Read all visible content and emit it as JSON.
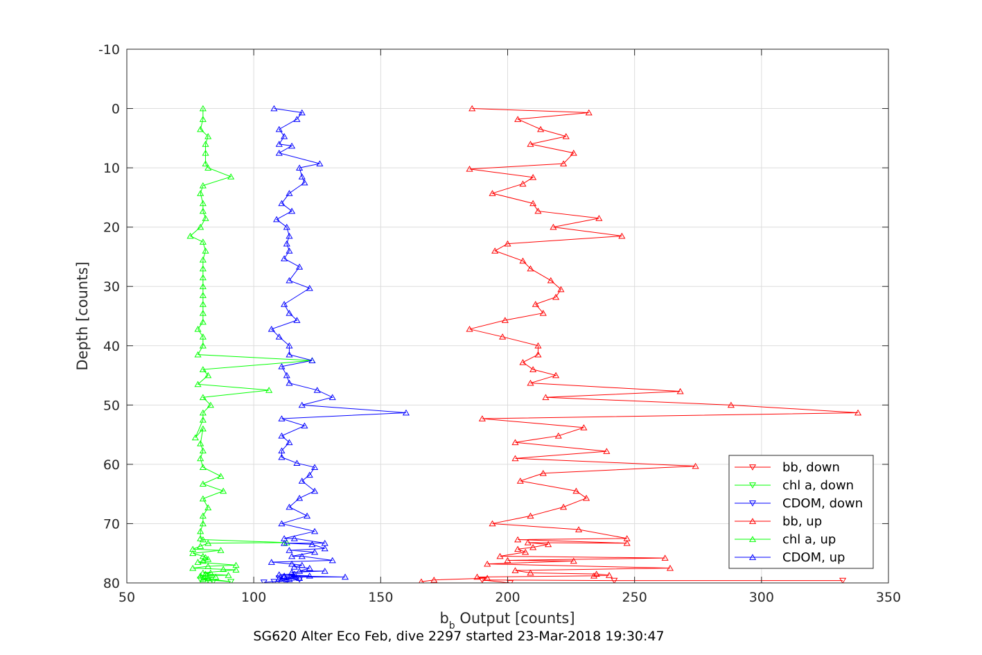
{
  "chart_data": {
    "type": "line",
    "xlabel": "b",
    "xlabel_sub": "b",
    "xlabel_rest": " Output [counts]",
    "ylabel": "Depth [counts]",
    "caption": "SG620 Alter Eco Feb, dive 2297 started 23-Mar-2018 19:30:47",
    "xlim": [
      50,
      350
    ],
    "ylim": [
      -10,
      80
    ],
    "y_reversed": true,
    "grid": true,
    "xticks": [
      "50",
      "100",
      "150",
      "200",
      "250",
      "300",
      "350"
    ],
    "yticks": [
      "-10",
      "0",
      "10",
      "20",
      "30",
      "40",
      "50",
      "60",
      "70",
      "80"
    ],
    "legend_position": "lower-right",
    "series": [
      {
        "name": "bb, down",
        "color": "#ff0000",
        "marker": "triangle-down",
        "points": [
          [
            201,
            80
          ],
          [
            190,
            79.5
          ],
          [
            242,
            79.6
          ],
          [
            332,
            79.6
          ]
        ]
      },
      {
        "name": "chl a, down",
        "color": "#00ff00",
        "marker": "triangle-down",
        "points": [
          [
            82,
            79.5
          ],
          [
            84,
            79.8
          ],
          [
            80,
            79.2
          ],
          [
            91,
            79.8
          ],
          [
            79,
            79.4
          ]
        ]
      },
      {
        "name": "CDOM, down",
        "color": "#0000ff",
        "marker": "triangle-down",
        "points": [
          [
            104,
            79.9
          ],
          [
            108,
            79.8
          ],
          [
            113,
            79.7
          ],
          [
            118,
            79.4
          ],
          [
            110,
            79.2
          ]
        ]
      },
      {
        "name": "bb, up",
        "color": "#ff0000",
        "marker": "triangle-up",
        "points": [
          [
            186,
            0
          ],
          [
            232,
            0.7
          ],
          [
            204,
            1.8
          ],
          [
            213,
            3.5
          ],
          [
            223,
            4.7
          ],
          [
            209,
            6
          ],
          [
            226,
            7.5
          ],
          [
            222,
            9.3
          ],
          [
            185,
            10.2
          ],
          [
            210,
            11.6
          ],
          [
            206,
            12.7
          ],
          [
            194,
            14.3
          ],
          [
            210,
            16
          ],
          [
            212,
            17.3
          ],
          [
            236,
            18.5
          ],
          [
            218,
            20
          ],
          [
            245,
            21.5
          ],
          [
            200,
            22.8
          ],
          [
            195,
            24
          ],
          [
            206,
            25.7
          ],
          [
            209,
            27
          ],
          [
            217,
            29
          ],
          [
            221,
            30.5
          ],
          [
            219,
            31.8
          ],
          [
            211,
            33
          ],
          [
            214,
            34.5
          ],
          [
            199,
            35.7
          ],
          [
            185,
            37.2
          ],
          [
            198,
            38.5
          ],
          [
            212,
            40
          ],
          [
            212,
            41.5
          ],
          [
            206,
            42.8
          ],
          [
            210,
            44
          ],
          [
            219,
            45
          ],
          [
            209,
            46.3
          ],
          [
            268,
            47.7
          ],
          [
            215,
            48.7
          ],
          [
            288,
            50
          ],
          [
            338,
            51.3
          ],
          [
            190,
            52.3
          ],
          [
            230,
            53.8
          ],
          [
            220,
            55.2
          ],
          [
            203,
            56.3
          ],
          [
            239,
            57.8
          ],
          [
            203,
            59
          ],
          [
            274,
            60.3
          ],
          [
            214,
            61.5
          ],
          [
            205,
            62.8
          ],
          [
            227,
            64.5
          ],
          [
            231,
            65.7
          ],
          [
            222,
            67.2
          ],
          [
            209,
            68.7
          ],
          [
            194,
            70
          ],
          [
            228,
            71
          ],
          [
            247,
            72.5
          ],
          [
            204,
            72.7
          ],
          [
            247,
            73.3
          ],
          [
            208,
            73.2
          ],
          [
            216,
            73.5
          ],
          [
            210,
            74
          ],
          [
            204,
            74.3
          ],
          [
            207,
            74.8
          ],
          [
            197,
            75.5
          ],
          [
            262,
            75.8
          ],
          [
            200,
            76.2
          ],
          [
            226,
            76.3
          ],
          [
            192,
            76.8
          ],
          [
            264,
            77.5
          ],
          [
            203,
            77.9
          ],
          [
            209,
            78.3
          ],
          [
            235,
            78.5
          ],
          [
            240,
            78.7
          ],
          [
            234,
            78.8
          ],
          [
            188,
            79
          ],
          [
            192,
            79.2
          ],
          [
            171,
            79.5
          ],
          [
            166,
            79.8
          ]
        ]
      },
      {
        "name": "chl a, up",
        "color": "#00ff00",
        "marker": "triangle-up",
        "points": [
          [
            80,
            0
          ],
          [
            80,
            1.8
          ],
          [
            79,
            3.5
          ],
          [
            82,
            4.7
          ],
          [
            81,
            6
          ],
          [
            81,
            7.5
          ],
          [
            81,
            9.3
          ],
          [
            82,
            10
          ],
          [
            91,
            11.5
          ],
          [
            80,
            13
          ],
          [
            79,
            14.3
          ],
          [
            80,
            16
          ],
          [
            80,
            17.3
          ],
          [
            81,
            18.5
          ],
          [
            79,
            20
          ],
          [
            75,
            21.5
          ],
          [
            80,
            22.5
          ],
          [
            81,
            24
          ],
          [
            80,
            25.5
          ],
          [
            80,
            27
          ],
          [
            80,
            28.5
          ],
          [
            80,
            30
          ],
          [
            80,
            31.5
          ],
          [
            80,
            33
          ],
          [
            80,
            34.5
          ],
          [
            80,
            36
          ],
          [
            78,
            37.2
          ],
          [
            80,
            38.5
          ],
          [
            80,
            40
          ],
          [
            78,
            41.5
          ],
          [
            123,
            42.5
          ],
          [
            80,
            44
          ],
          [
            82,
            45
          ],
          [
            78,
            46.5
          ],
          [
            106,
            47.5
          ],
          [
            80,
            48.7
          ],
          [
            83,
            50
          ],
          [
            80,
            51.3
          ],
          [
            80,
            52.5
          ],
          [
            77,
            55.5
          ],
          [
            80,
            54
          ],
          [
            79,
            56.5
          ],
          [
            80,
            57.7
          ],
          [
            79,
            59
          ],
          [
            80,
            60.5
          ],
          [
            87,
            62
          ],
          [
            80,
            63.3
          ],
          [
            88,
            64.5
          ],
          [
            80,
            65.8
          ],
          [
            82,
            67.3
          ],
          [
            80,
            68.7
          ],
          [
            80,
            70
          ],
          [
            79,
            71.3
          ],
          [
            79,
            72.5
          ],
          [
            80,
            72.7
          ],
          [
            113,
            73.2
          ],
          [
            82,
            73.3
          ],
          [
            79,
            73.8
          ],
          [
            76,
            74.3
          ],
          [
            87,
            74.5
          ],
          [
            76,
            75
          ],
          [
            80,
            75.5
          ],
          [
            81,
            75.7
          ],
          [
            82,
            76
          ],
          [
            80,
            76.3
          ],
          [
            78,
            76.5
          ],
          [
            93,
            77
          ],
          [
            82,
            77.2
          ],
          [
            76,
            77.5
          ],
          [
            88,
            77.7
          ],
          [
            93,
            77.8
          ],
          [
            80,
            78.3
          ],
          [
            83,
            78.3
          ],
          [
            81,
            78.5
          ],
          [
            90,
            78.7
          ],
          [
            79,
            78.8
          ],
          [
            85,
            79
          ],
          [
            82,
            79.2
          ],
          [
            80,
            79.4
          ]
        ]
      },
      {
        "name": "CDOM, up",
        "color": "#0000ff",
        "marker": "triangle-up",
        "points": [
          [
            108,
            0
          ],
          [
            119,
            0.7
          ],
          [
            117,
            1.8
          ],
          [
            110,
            3.5
          ],
          [
            112,
            4.7
          ],
          [
            110,
            6
          ],
          [
            115,
            6.3
          ],
          [
            110,
            7.5
          ],
          [
            126,
            9.3
          ],
          [
            118,
            10
          ],
          [
            119,
            11.5
          ],
          [
            120,
            12.5
          ],
          [
            114,
            14.3
          ],
          [
            111,
            16
          ],
          [
            115,
            17.3
          ],
          [
            109,
            18.7
          ],
          [
            113,
            20
          ],
          [
            114,
            21.5
          ],
          [
            113,
            22.8
          ],
          [
            114,
            24
          ],
          [
            112,
            25.3
          ],
          [
            118,
            26.7
          ],
          [
            114,
            29
          ],
          [
            122,
            30.3
          ],
          [
            112,
            33
          ],
          [
            114,
            34.5
          ],
          [
            117,
            35.7
          ],
          [
            107,
            37.2
          ],
          [
            110,
            38.5
          ],
          [
            114,
            40
          ],
          [
            114,
            41.5
          ],
          [
            123,
            42.5
          ],
          [
            111,
            43.5
          ],
          [
            113,
            45
          ],
          [
            114,
            46.3
          ],
          [
            125,
            47.5
          ],
          [
            131,
            48.7
          ],
          [
            119,
            50
          ],
          [
            160,
            51.3
          ],
          [
            111,
            52.3
          ],
          [
            120,
            53.5
          ],
          [
            111,
            55.2
          ],
          [
            114,
            56.3
          ],
          [
            111,
            57.7
          ],
          [
            111,
            58.8
          ],
          [
            117,
            59.8
          ],
          [
            124,
            60.5
          ],
          [
            122,
            61.8
          ],
          [
            119,
            62.8
          ],
          [
            124,
            64.5
          ],
          [
            118,
            65.7
          ],
          [
            114,
            67.2
          ],
          [
            121,
            68.7
          ],
          [
            111,
            70
          ],
          [
            124,
            71.3
          ],
          [
            112,
            72.5
          ],
          [
            116,
            72.5
          ],
          [
            128,
            73.3
          ],
          [
            112,
            73.3
          ],
          [
            123,
            73.5
          ],
          [
            128,
            74.2
          ],
          [
            114,
            74.5
          ],
          [
            124,
            74.8
          ],
          [
            115,
            75.5
          ],
          [
            119,
            75.5
          ],
          [
            131,
            76.2
          ],
          [
            107,
            76.5
          ],
          [
            115,
            76.8
          ],
          [
            119,
            77
          ],
          [
            116,
            77.3
          ],
          [
            122,
            77.5
          ],
          [
            118,
            78
          ],
          [
            128,
            78
          ],
          [
            115,
            78.2
          ],
          [
            116,
            78.5
          ],
          [
            110,
            78.6
          ],
          [
            122,
            78.8
          ],
          [
            112,
            78.8
          ],
          [
            136,
            79
          ],
          [
            112,
            79
          ],
          [
            118,
            79.2
          ],
          [
            110,
            79.3
          ],
          [
            114,
            79.4
          ],
          [
            111,
            79.6
          ]
        ]
      }
    ]
  }
}
